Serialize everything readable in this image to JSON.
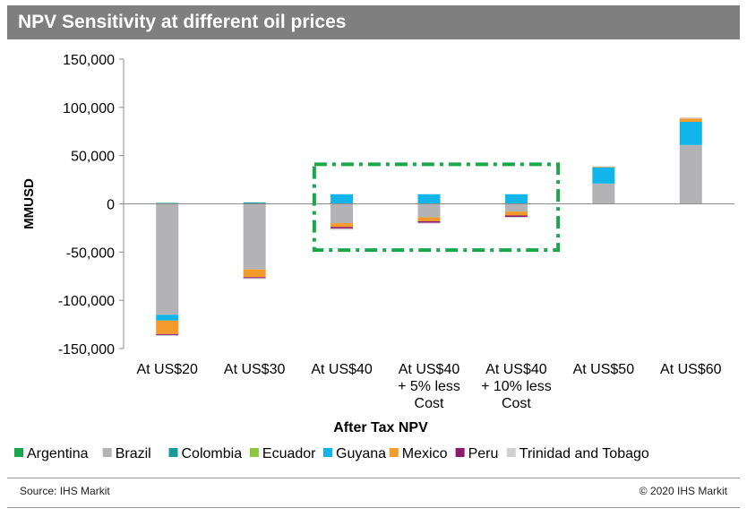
{
  "header": {
    "title": "NPV Sensitivity at different oil prices"
  },
  "footer": {
    "source": "Source: IHS Markit",
    "copyright": "© 2020 IHS Markit"
  },
  "chart_data": {
    "type": "bar",
    "stacked": true,
    "title": "NPV Sensitivity at different oil prices",
    "xlabel": "After Tax NPV",
    "ylabel": "MMUSD",
    "ylim": [
      -150000,
      150000
    ],
    "yticks": [
      150000,
      100000,
      50000,
      0,
      -50000,
      -100000,
      -150000
    ],
    "ytick_labels": [
      "150,000",
      "100,000",
      "50,000",
      "0",
      "-50,000",
      "-100,000",
      "-150,000"
    ],
    "categories": [
      [
        "At US$20"
      ],
      [
        "At US$30"
      ],
      [
        "At US$40"
      ],
      [
        "At US$40",
        "+ 5% less",
        "Cost"
      ],
      [
        "At US$40",
        "+ 10% less",
        "Cost"
      ],
      [
        "At US$50"
      ],
      [
        "At US$60"
      ]
    ],
    "legend_position": "bottom",
    "series": [
      {
        "name": "Argentina",
        "color": "#1aa64a",
        "values": [
          0,
          0,
          0,
          0,
          0,
          0,
          0
        ]
      },
      {
        "name": "Brazil",
        "color": "#b3b3b5",
        "values": [
          -115000,
          -68000,
          -20000,
          -14000,
          -8000,
          21000,
          61000
        ]
      },
      {
        "name": "Colombia",
        "color": "#1a9a9a",
        "values": [
          1000,
          1500,
          0,
          0,
          0,
          0,
          0
        ]
      },
      {
        "name": "Ecuador",
        "color": "#8dc63f",
        "values": [
          0,
          0,
          0,
          0,
          0,
          0,
          0
        ]
      },
      {
        "name": "Guyana",
        "color": "#12b5ea",
        "values": [
          -6000,
          0,
          10000,
          10000,
          10000,
          17000,
          24000
        ]
      },
      {
        "name": "Mexico",
        "color": "#f39a2b",
        "values": [
          -14000,
          -8000,
          -4000,
          -4000,
          -4000,
          500,
          3500
        ]
      },
      {
        "name": "Peru",
        "color": "#8b1a6e",
        "values": [
          -1000,
          -1000,
          -1500,
          -1500,
          -1500,
          0,
          0
        ]
      },
      {
        "name": "Trinidad and Tobago",
        "color": "#d0d0d0",
        "values": [
          -1000,
          -1000,
          -1500,
          -1000,
          -1000,
          500,
          1000
        ]
      }
    ],
    "annotation": {
      "shape": "dash-dot-rectangle",
      "color": "#1aa64a",
      "spans_categories": [
        "At US$40",
        "At US$40 + 5% less Cost",
        "At US$40 + 10% less Cost"
      ],
      "y_range": [
        -48000,
        41000
      ]
    }
  }
}
